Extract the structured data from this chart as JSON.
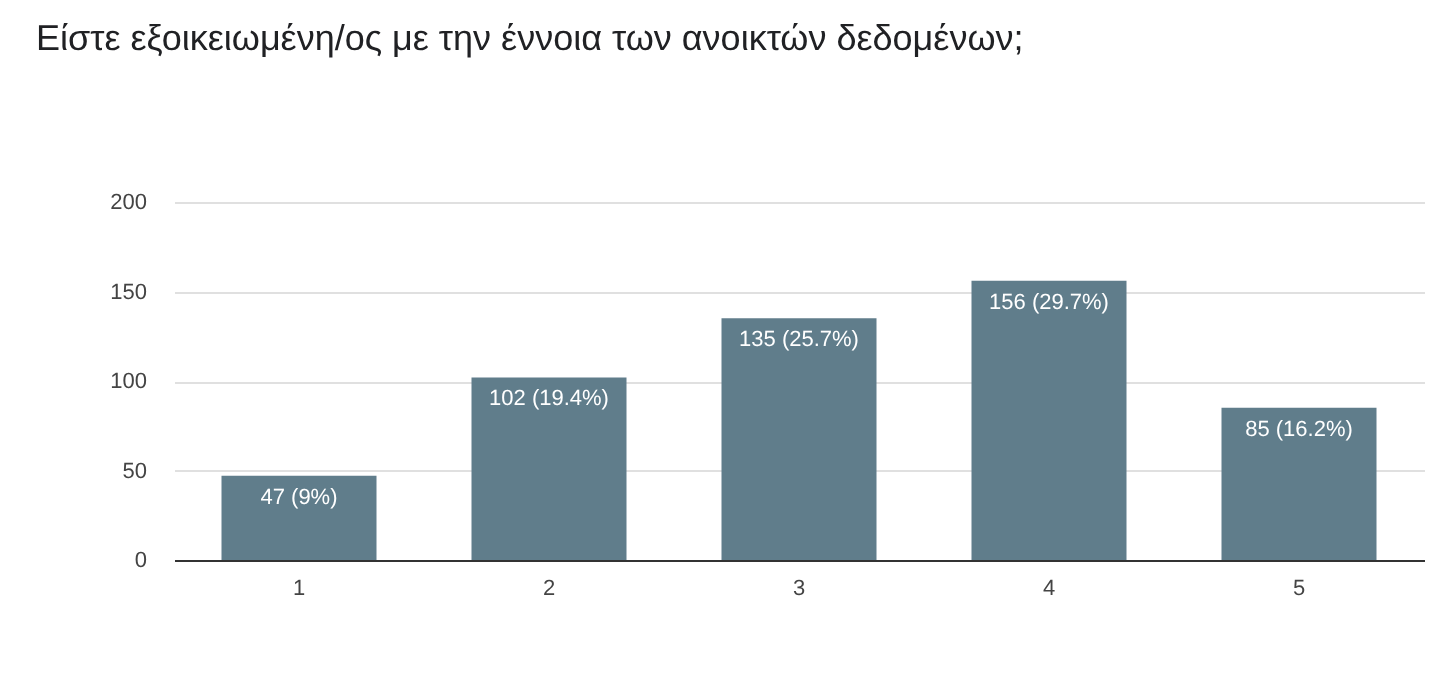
{
  "chart_data": {
    "type": "bar",
    "title": "Είστε εξοικειωμένη/ος με την έννοια των ανοικτών δεδομένων;",
    "categories": [
      "1",
      "2",
      "3",
      "4",
      "5"
    ],
    "values": [
      47,
      102,
      135,
      156,
      85
    ],
    "value_labels": [
      "47 (9%)",
      "102 (19.4%)",
      "135 (25.7%)",
      "156 (29.7%)",
      "85 (16.2%)"
    ],
    "color": "#607d8b",
    "ylim": [
      0,
      200
    ],
    "yticks": [
      0,
      50,
      100,
      150,
      200
    ],
    "grid": true
  }
}
